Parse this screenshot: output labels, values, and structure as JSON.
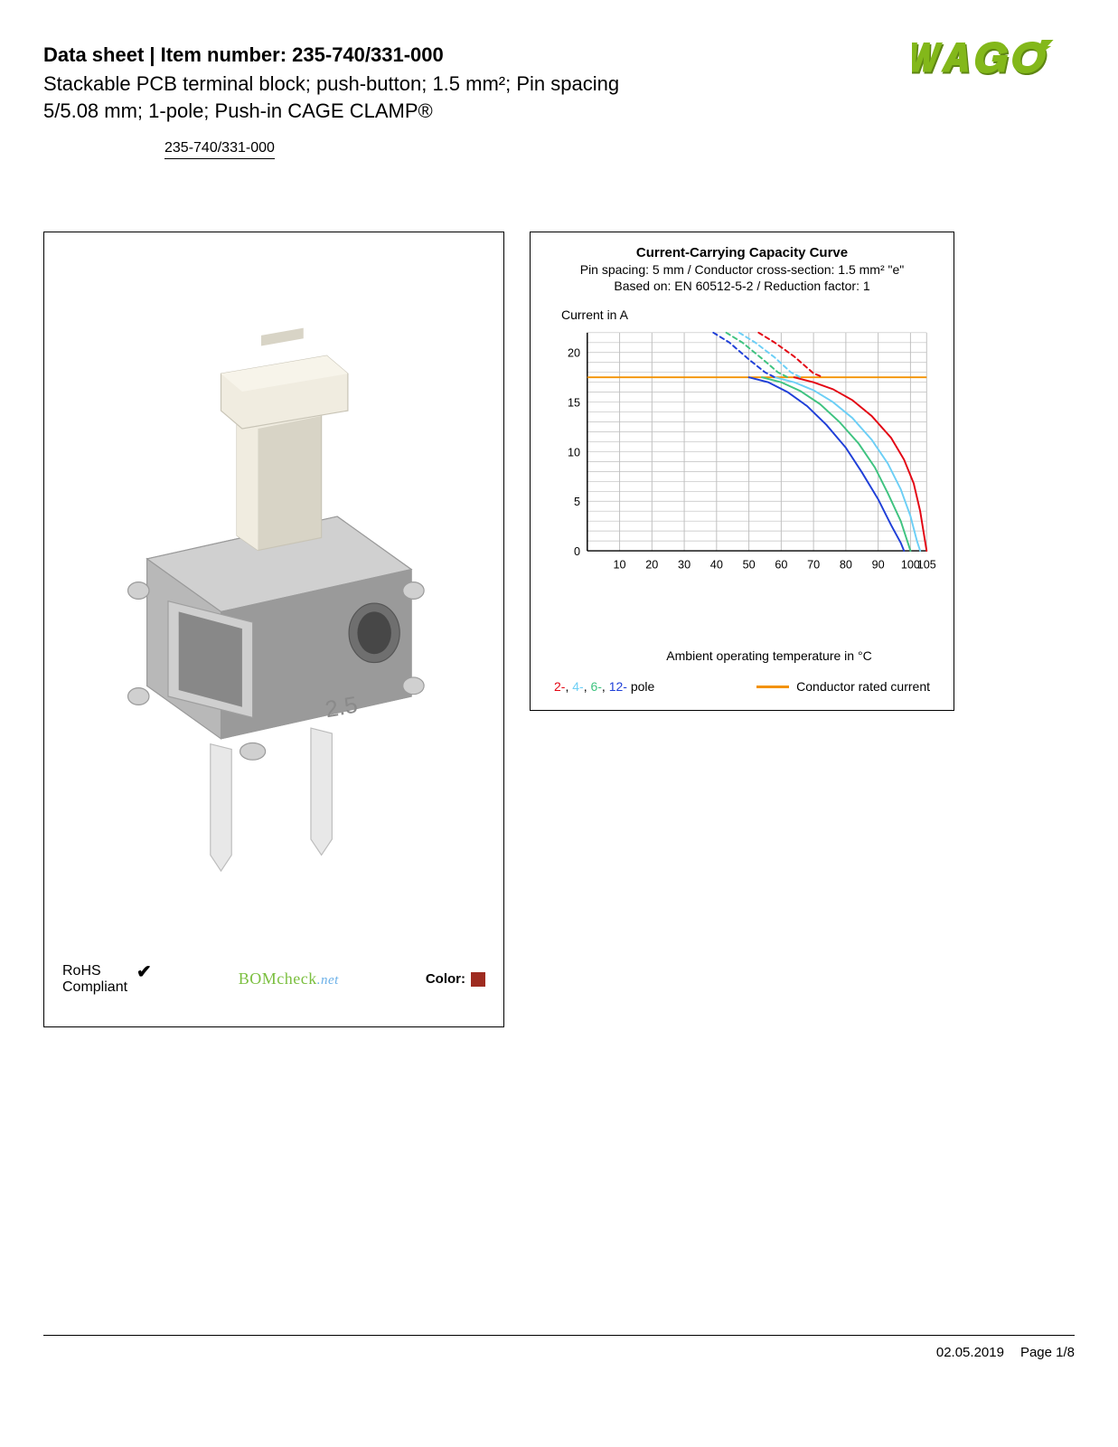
{
  "header": {
    "title_prefix": "Data sheet",
    "title_sep": "  |  ",
    "title_label": "Item number:",
    "item_number": "235-740/331-000",
    "subtitle": "Stackable PCB terminal block; push-button; 1.5 mm²; Pin spacing 5/5.08 mm; 1-pole; Push-in CAGE CLAMP®",
    "item_link": "235-740/331-000"
  },
  "logo": {
    "brand": "WAGO",
    "color": "#83b81a",
    "shadow": "#5e8613"
  },
  "left_panel": {
    "product_colors": {
      "body": "#b8b8b8",
      "body_dark": "#9a9a9a",
      "body_light": "#d0d0d0",
      "button": "#f0ece0",
      "button_shadow": "#d8d4c6",
      "metal": "#cfcfcf",
      "metal_dark": "#9f9f9f",
      "pin": "#e8e8e8",
      "pin_edge": "#bcbcbc"
    },
    "rohs_label_1": "RoHS",
    "rohs_label_2": "Compliant",
    "bomcheck_main": "BOMcheck",
    "bomcheck_suffix": ".net",
    "color_label": "Color:",
    "color_swatch": "#9e2b20"
  },
  "chart": {
    "title": "Current-Carrying Capacity Curve",
    "sub1": "Pin spacing: 5 mm / Conductor cross-section: 1.5 mm² \"e\"",
    "sub2": "Based on: EN 60512-5-2 / Reduction factor: 1",
    "ylabel": "Current in A",
    "xlabel": "Ambient operating temperature in °C",
    "ylim": [
      0,
      22
    ],
    "xlim": [
      0,
      105
    ],
    "yticks": [
      0,
      5,
      10,
      15,
      20
    ],
    "xticks": [
      10,
      20,
      30,
      40,
      50,
      60,
      70,
      80,
      90,
      100,
      105
    ],
    "grid_color": "#bfbfbf",
    "axis_color": "#000000",
    "background": "#ffffff",
    "rated_current": {
      "value": 17.5,
      "color": "#f39200"
    },
    "series": [
      {
        "name": "2-pole",
        "color": "#e30613",
        "solid": [
          [
            64,
            17.5
          ],
          [
            70,
            17.0
          ],
          [
            76,
            16.3
          ],
          [
            82,
            15.2
          ],
          [
            88,
            13.6
          ],
          [
            94,
            11.4
          ],
          [
            98,
            9.2
          ],
          [
            101,
            6.8
          ],
          [
            103,
            4.0
          ],
          [
            104.5,
            1.0
          ],
          [
            105,
            0
          ]
        ],
        "dashed": [
          [
            53,
            22
          ],
          [
            58,
            21.0
          ],
          [
            64,
            19.6
          ],
          [
            70,
            17.9
          ],
          [
            73,
            17.5
          ]
        ]
      },
      {
        "name": "4-pole",
        "color": "#6ccff6",
        "solid": [
          [
            58,
            17.5
          ],
          [
            64,
            17.0
          ],
          [
            70,
            16.2
          ],
          [
            76,
            15.0
          ],
          [
            82,
            13.4
          ],
          [
            88,
            11.2
          ],
          [
            93,
            8.8
          ],
          [
            97,
            6.2
          ],
          [
            100,
            3.5
          ],
          [
            102,
            1.0
          ],
          [
            103,
            0
          ]
        ],
        "dashed": [
          [
            47,
            22
          ],
          [
            52,
            21.0
          ],
          [
            58,
            19.5
          ],
          [
            63,
            18.0
          ],
          [
            66,
            17.5
          ]
        ]
      },
      {
        "name": "6-pole",
        "color": "#3fc380",
        "solid": [
          [
            54,
            17.5
          ],
          [
            60,
            17.0
          ],
          [
            66,
            16.1
          ],
          [
            72,
            14.8
          ],
          [
            78,
            13.0
          ],
          [
            84,
            10.8
          ],
          [
            89,
            8.4
          ],
          [
            93,
            5.8
          ],
          [
            97,
            3.0
          ],
          [
            99,
            1.0
          ],
          [
            100,
            0
          ]
        ],
        "dashed": [
          [
            43,
            22
          ],
          [
            48,
            21.0
          ],
          [
            54,
            19.4
          ],
          [
            59,
            18.0
          ],
          [
            62,
            17.5
          ]
        ]
      },
      {
        "name": "12-pole",
        "color": "#1f3fd8",
        "solid": [
          [
            50,
            17.5
          ],
          [
            56,
            17.0
          ],
          [
            62,
            16.0
          ],
          [
            68,
            14.6
          ],
          [
            74,
            12.7
          ],
          [
            80,
            10.4
          ],
          [
            85,
            7.9
          ],
          [
            90,
            5.2
          ],
          [
            94,
            2.6
          ],
          [
            97,
            0.8
          ],
          [
            98,
            0
          ]
        ],
        "dashed": [
          [
            39,
            22
          ],
          [
            44,
            21.0
          ],
          [
            50,
            19.3
          ],
          [
            55,
            18.0
          ],
          [
            58,
            17.5
          ]
        ]
      }
    ],
    "legend_poles": [
      {
        "label": "2-",
        "color": "#e30613"
      },
      {
        "label": "4-",
        "color": "#6ccff6"
      },
      {
        "label": "6-",
        "color": "#3fc380"
      },
      {
        "label": "12-",
        "color": "#1f3fd8"
      }
    ],
    "legend_pole_suffix": " pole",
    "legend_rated": "Conductor rated current",
    "line_width": 2,
    "dash_pattern": "5,4"
  },
  "footer": {
    "date": "02.05.2019",
    "page": "Page 1/8"
  }
}
